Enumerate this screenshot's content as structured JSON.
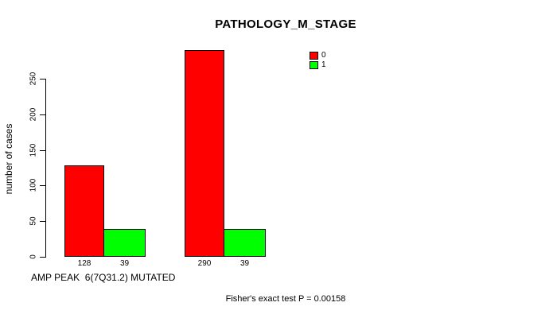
{
  "title": "PATHOLOGY_M_STAGE",
  "y_axis": {
    "label": "number of cases",
    "ticks": [
      0,
      50,
      100,
      150,
      200,
      250
    ]
  },
  "x_axis": {
    "label": "AMP PEAK  6(7Q31.2) MUTATED"
  },
  "legend": {
    "items": [
      {
        "label": "0",
        "color": "#ff0000"
      },
      {
        "label": "1",
        "color": "#00ff00"
      }
    ]
  },
  "footer": {
    "stat_text": "Fisher's exact test P = 0.00158"
  },
  "chart_data": {
    "type": "bar",
    "title": "PATHOLOGY_M_STAGE",
    "ylabel": "number of cases",
    "xlabel": "AMP PEAK  6(7Q31.2) MUTATED",
    "ylim": [
      0,
      250
    ],
    "y_ticks": [
      0,
      50,
      100,
      150,
      200,
      250
    ],
    "grid": false,
    "legend_position": "top-right",
    "series": [
      {
        "name": "0",
        "color": "#ff0000",
        "values": [
          128,
          290
        ]
      },
      {
        "name": "1",
        "color": "#00ff00",
        "values": [
          39,
          39
        ]
      }
    ],
    "bar_value_labels": [
      [
        128,
        39
      ],
      [
        290,
        39
      ]
    ],
    "annotation": "Fisher's exact test P = 0.00158"
  }
}
